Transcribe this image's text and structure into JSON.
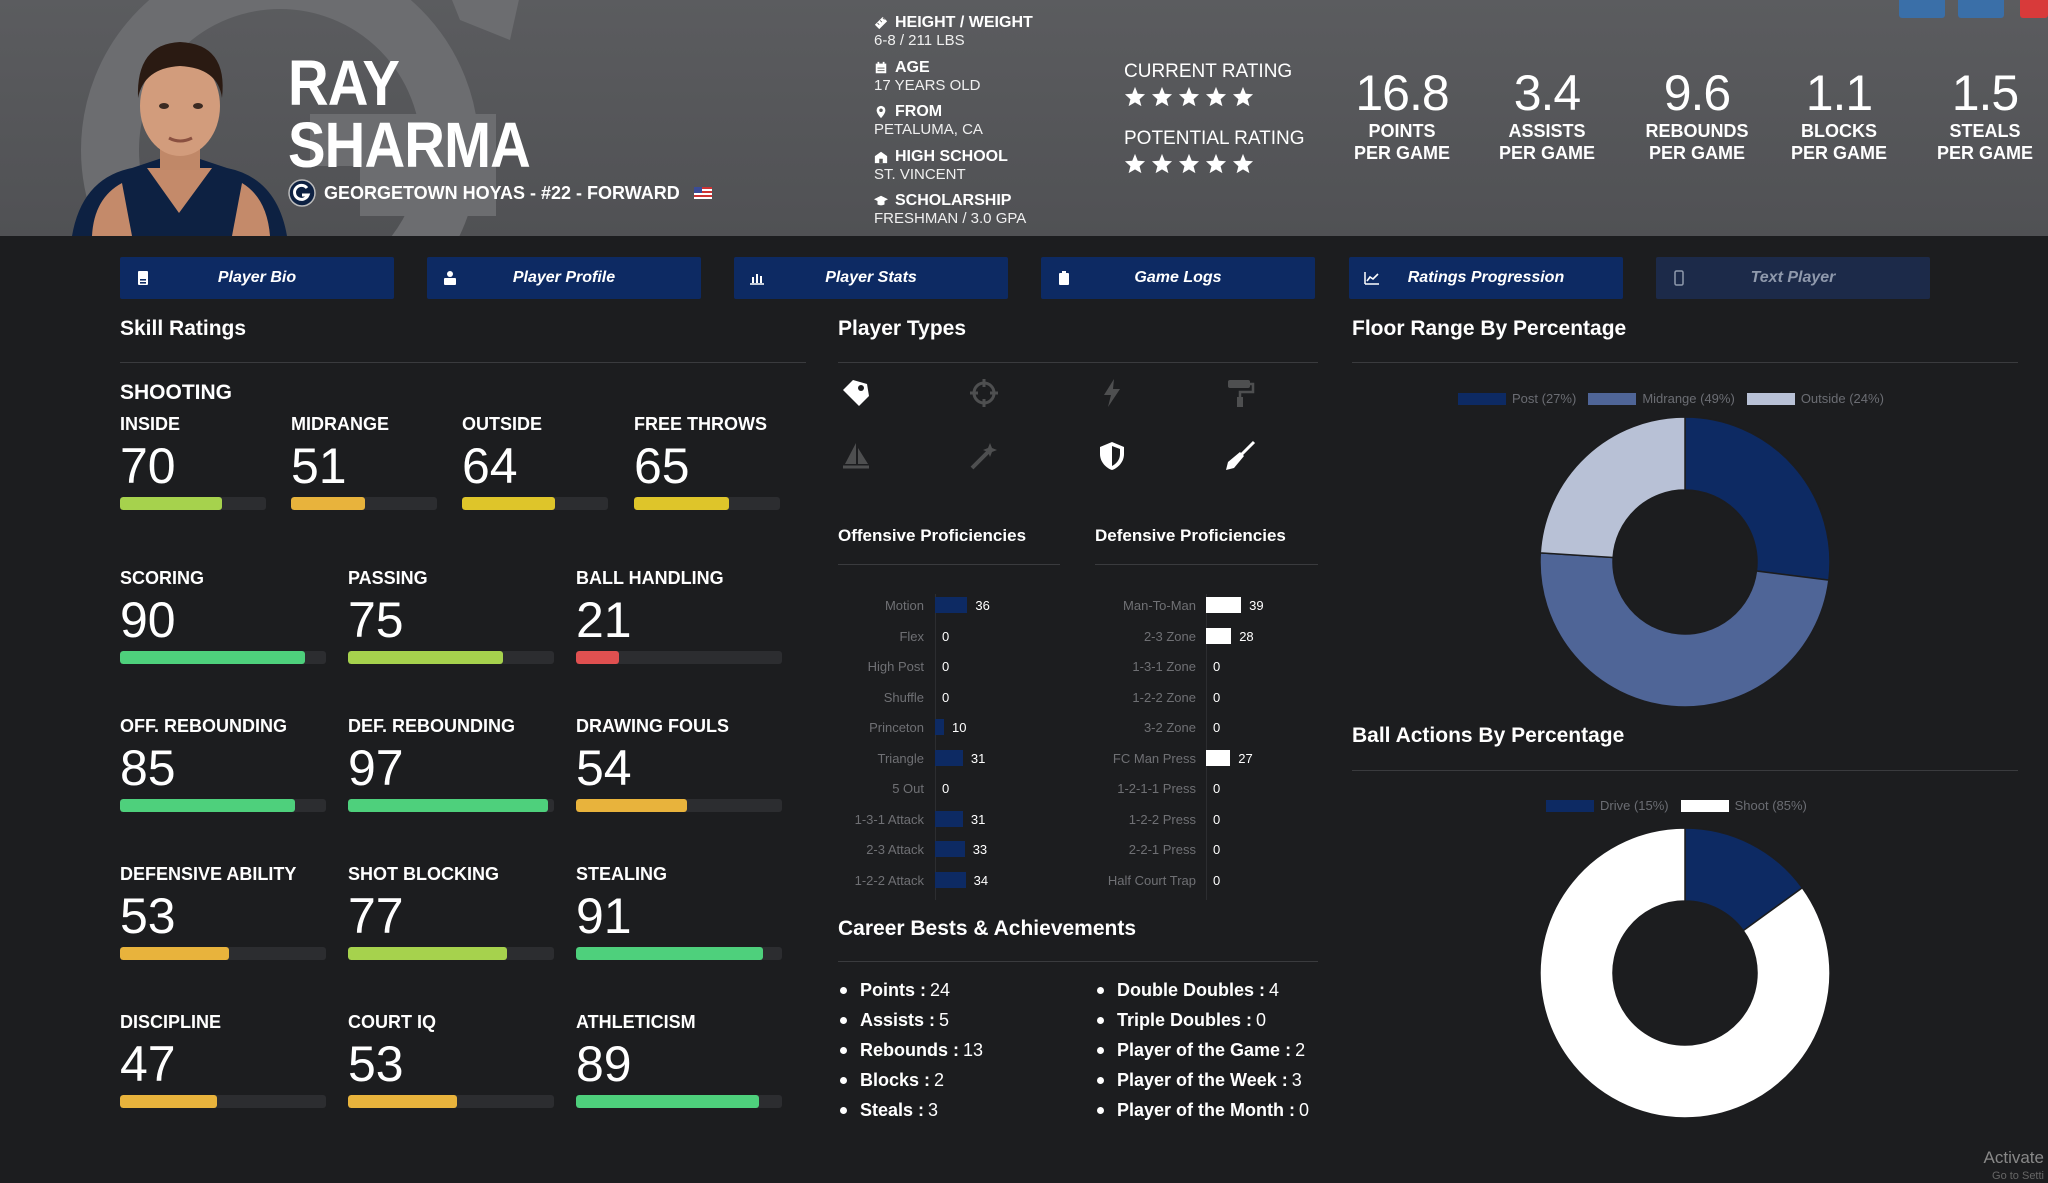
{
  "player": {
    "first_name": "RAY",
    "last_name": "SHARMA",
    "team_line": "GEORGETOWN HOYAS - #22 - FORWARD"
  },
  "bio": [
    {
      "icon": "ruler-icon",
      "label": "HEIGHT / WEIGHT",
      "value": "6-8 / 211 LBS"
    },
    {
      "icon": "calendar-icon",
      "label": "AGE",
      "value": "17 YEARS OLD"
    },
    {
      "icon": "location-pin-icon",
      "label": "FROM",
      "value": "PETALUMA, CA"
    },
    {
      "icon": "school-icon",
      "label": "HIGH SCHOOL",
      "value": "ST. VINCENT"
    },
    {
      "icon": "graduation-cap-icon",
      "label": "SCHOLARSHIP",
      "value": "FRESHMAN / 3.0 GPA"
    }
  ],
  "ratings": {
    "current_label": "CURRENT RATING",
    "current_stars": 5,
    "potential_label": "POTENTIAL RATING",
    "potential_stars": 5
  },
  "stats": [
    {
      "value": "16.8",
      "label1": "POINTS",
      "label2": "PER GAME"
    },
    {
      "value": "3.4",
      "label1": "ASSISTS",
      "label2": "PER GAME"
    },
    {
      "value": "9.6",
      "label1": "REBOUNDS",
      "label2": "PER GAME"
    },
    {
      "value": "1.1",
      "label1": "BLOCKS",
      "label2": "PER GAME"
    },
    {
      "value": "1.5",
      "label1": "STEALS",
      "label2": "PER GAME"
    }
  ],
  "nav": [
    {
      "label": "Player Bio",
      "icon": "id-card-icon"
    },
    {
      "label": "Player Profile",
      "icon": "profile-icon"
    },
    {
      "label": "Player Stats",
      "icon": "bar-chart-icon"
    },
    {
      "label": "Game Logs",
      "icon": "clipboard-icon"
    },
    {
      "label": "Ratings Progression",
      "icon": "line-chart-icon"
    },
    {
      "label": "Text Player",
      "icon": "phone-icon"
    }
  ],
  "skills": {
    "title": "Skill Ratings",
    "group_title": "SHOOTING",
    "items": [
      {
        "label": "INSIDE",
        "value": 70
      },
      {
        "label": "MIDRANGE",
        "value": 51
      },
      {
        "label": "OUTSIDE",
        "value": 64
      },
      {
        "label": "FREE THROWS",
        "value": 65
      },
      {
        "label": "SCORING",
        "value": 90
      },
      {
        "label": "PASSING",
        "value": 75
      },
      {
        "label": "BALL HANDLING",
        "value": 21
      },
      {
        "label": "OFF. REBOUNDING",
        "value": 85
      },
      {
        "label": "DEF. REBOUNDING",
        "value": 97
      },
      {
        "label": "DRAWING FOULS",
        "value": 54
      },
      {
        "label": "DEFENSIVE ABILITY",
        "value": 53
      },
      {
        "label": "SHOT BLOCKING",
        "value": 77
      },
      {
        "label": "STEALING",
        "value": 91
      },
      {
        "label": "DISCIPLINE",
        "value": 47
      },
      {
        "label": "COURT IQ",
        "value": 53
      },
      {
        "label": "ATHLETICISM",
        "value": 89
      }
    ]
  },
  "player_types": {
    "title": "Player Types",
    "icons": [
      {
        "name": "tag-icon",
        "active": true
      },
      {
        "name": "crosshair-icon",
        "active": false
      },
      {
        "name": "lightning-icon",
        "active": false
      },
      {
        "name": "paint-roller-icon",
        "active": false
      },
      {
        "name": "sailboat-icon",
        "active": false
      },
      {
        "name": "magic-wand-icon",
        "active": false
      },
      {
        "name": "shield-icon",
        "active": true
      },
      {
        "name": "broom-icon",
        "active": true
      }
    ]
  },
  "offensive": {
    "title": "Offensive Proficiencies",
    "color": "#0d2a63",
    "rows": [
      {
        "name": "Motion",
        "value": 36
      },
      {
        "name": "Flex",
        "value": 0
      },
      {
        "name": "High Post",
        "value": 0
      },
      {
        "name": "Shuffle",
        "value": 0
      },
      {
        "name": "Princeton",
        "value": 10
      },
      {
        "name": "Triangle",
        "value": 31
      },
      {
        "name": "5 Out",
        "value": 0
      },
      {
        "name": "1-3-1 Attack",
        "value": 31
      },
      {
        "name": "2-3 Attack",
        "value": 33
      },
      {
        "name": "1-2-2 Attack",
        "value": 34
      }
    ]
  },
  "defensive": {
    "title": "Defensive Proficiencies",
    "color": "#ffffff",
    "rows": [
      {
        "name": "Man-To-Man",
        "value": 39
      },
      {
        "name": "2-3 Zone",
        "value": 28
      },
      {
        "name": "1-3-1 Zone",
        "value": 0
      },
      {
        "name": "1-2-2 Zone",
        "value": 0
      },
      {
        "name": "3-2 Zone",
        "value": 0
      },
      {
        "name": "FC Man Press",
        "value": 27
      },
      {
        "name": "1-2-1-1 Press",
        "value": 0
      },
      {
        "name": "1-2-2 Press",
        "value": 0
      },
      {
        "name": "2-2-1 Press",
        "value": 0
      },
      {
        "name": "Half Court Trap",
        "value": 0
      }
    ]
  },
  "achievements": {
    "title": "Career Bests & Achievements",
    "left": [
      {
        "label": "Points :",
        "value": "24"
      },
      {
        "label": "Assists :",
        "value": "5"
      },
      {
        "label": "Rebounds :",
        "value": "13"
      },
      {
        "label": "Blocks :",
        "value": "2"
      },
      {
        "label": "Steals :",
        "value": "3"
      }
    ],
    "right": [
      {
        "label": "Double Doubles :",
        "value": "4"
      },
      {
        "label": "Triple Doubles :",
        "value": "0"
      },
      {
        "label": "Player of the Game :",
        "value": "2"
      },
      {
        "label": "Player of the Week :",
        "value": "3"
      },
      {
        "label": "Player of the Month :",
        "value": "0"
      }
    ]
  },
  "floor_range": {
    "title": "Floor Range By Percentage",
    "slices": [
      {
        "label": "Post (27%)",
        "value": 27,
        "color": "#0d2a63"
      },
      {
        "label": "Midrange (49%)",
        "value": 49,
        "color": "#4f6597"
      },
      {
        "label": "Outside (24%)",
        "value": 24,
        "color": "#b8c1d6"
      }
    ]
  },
  "ball_actions": {
    "title": "Ball Actions By Percentage",
    "slices": [
      {
        "label": "Drive (15%)",
        "value": 15,
        "color": "#0d2a63"
      },
      {
        "label": "Shoot (85%)",
        "value": 85,
        "color": "#ffffff"
      }
    ]
  },
  "watermark": {
    "line1": "Activate",
    "line2": "Go to Setti"
  }
}
